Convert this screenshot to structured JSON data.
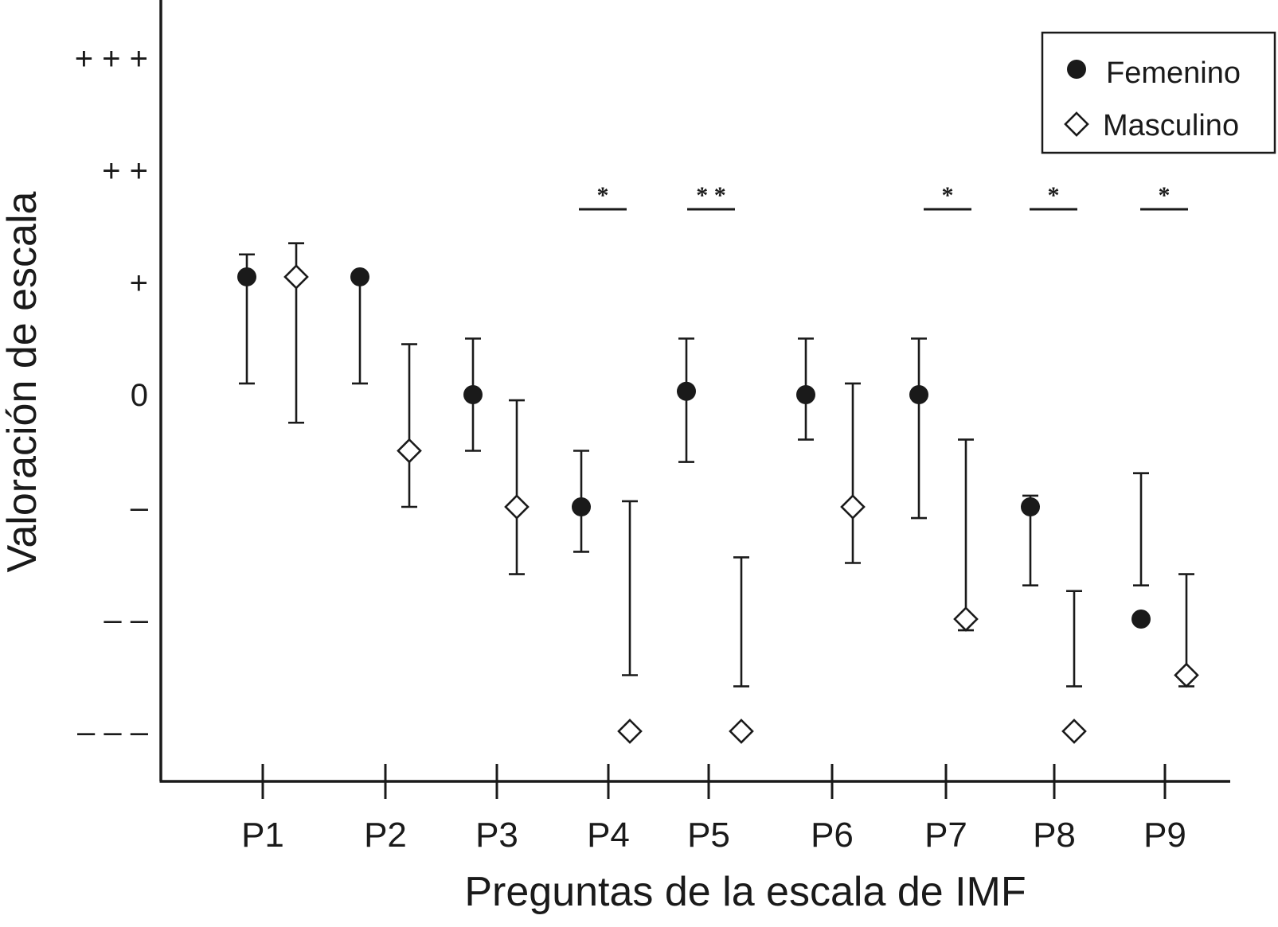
{
  "chart_data": {
    "type": "scatter",
    "title": "",
    "xlabel": "Preguntas de la escala de IMF",
    "ylabel": "Valoración de escala",
    "categories": [
      "P1",
      "P2",
      "P3",
      "P4",
      "P5",
      "P6",
      "P7",
      "P8",
      "P9"
    ],
    "ylim": [
      -3.5,
      3.5
    ],
    "yticks": [
      {
        "value": 3,
        "label": "+ + +"
      },
      {
        "value": 2,
        "label": "+ +"
      },
      {
        "value": 1,
        "label": "+"
      },
      {
        "value": 0,
        "label": "0"
      },
      {
        "value": -1,
        "label": "–"
      },
      {
        "value": -2,
        "label": "– –"
      },
      {
        "value": -3,
        "label": "– – –"
      }
    ],
    "series": [
      {
        "name": "Femenino",
        "marker": "filled-circle",
        "values": [
          1.05,
          1.05,
          0.0,
          -1.0,
          0.03,
          0.0,
          0.0,
          -1.0,
          -2.0
        ],
        "err_low": [
          0.1,
          0.1,
          -0.5,
          -1.4,
          -0.6,
          -0.4,
          -1.1,
          -1.7,
          -1.7
        ],
        "err_high": [
          1.25,
          1.05,
          0.5,
          -0.5,
          0.5,
          0.5,
          0.5,
          -0.9,
          -0.7
        ]
      },
      {
        "name": "Masculino",
        "marker": "open-diamond",
        "values": [
          1.05,
          -0.5,
          -1.0,
          -3.0,
          -3.0,
          -1.0,
          -2.0,
          -3.0,
          -2.5
        ],
        "err_low": [
          -0.25,
          -1.0,
          -1.6,
          -2.5,
          -2.6,
          -1.5,
          -2.1,
          -2.6,
          -2.6
        ],
        "err_high": [
          1.35,
          0.45,
          -0.05,
          -0.95,
          -1.45,
          0.1,
          -0.4,
          -1.75,
          -1.6
        ]
      }
    ],
    "significance": [
      {
        "category": "P4",
        "label": "*"
      },
      {
        "category": "P5",
        "label": "* *"
      },
      {
        "category": "P7",
        "label": "*"
      },
      {
        "category": "P8",
        "label": "*"
      },
      {
        "category": "P9",
        "label": "*"
      }
    ],
    "legend": {
      "position": "top-right",
      "entries": [
        "Femenino",
        "Masculino"
      ]
    },
    "grid": false
  }
}
